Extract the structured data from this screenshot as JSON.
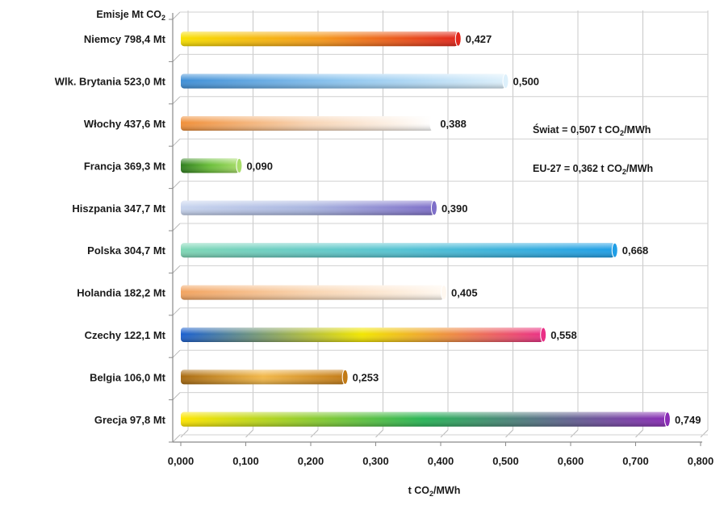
{
  "chart_data": {
    "type": "bar",
    "orientation": "horizontal",
    "title": "Emisje Mt CO",
    "title_subscript": "2",
    "categories": [
      "Niemcy 798,4 Mt",
      "Wlk. Brytania 523,0 Mt",
      "Włochy 437,6 Mt",
      "Francja 369,3 Mt",
      "Hiszpania 347,7 Mt",
      "Polska 304,7 Mt",
      "Holandia 182,2 Mt",
      "Czechy 122,1 Mt",
      "Belgia 106,0 Mt",
      "Grecja 97,8 Mt"
    ],
    "values": [
      0.427,
      0.5,
      0.388,
      0.09,
      0.39,
      0.668,
      0.405,
      0.558,
      0.253,
      0.749
    ],
    "value_labels": [
      "0,427",
      "0,500",
      "0,388",
      "0,090",
      "0,390",
      "0,668",
      "0,405",
      "0,558",
      "0,253",
      "0,749"
    ],
    "xlabel": "t CO",
    "xlabel_subscript": "2",
    "xlabel_suffix": "/MWh",
    "xlim": [
      0,
      0.8
    ],
    "xticks": [
      0,
      0.1,
      0.2,
      0.3,
      0.4,
      0.5,
      0.6,
      0.7,
      0.8
    ],
    "xtick_labels": [
      "0,000",
      "0,100",
      "0,200",
      "0,300",
      "0,400",
      "0,500",
      "0,600",
      "0,700",
      "0,800"
    ],
    "grid": true,
    "annotations": [
      {
        "prefix": "Świat = 0,507 t CO",
        "sub": "2",
        "suffix": "/MWh"
      },
      {
        "prefix": "EU-27 = 0,362 t CO",
        "sub": "2",
        "suffix": "/MWh"
      }
    ],
    "bar_colors": [
      [
        "#f8e000",
        "#f59a1c",
        "#e2261c"
      ],
      [
        "#3f8fd6",
        "#8fc6ef",
        "#ddf0fb"
      ],
      [
        "#f08f38",
        "#f7d3b2",
        "#ffffff"
      ],
      [
        "#2e7d1e",
        "#6bbf3a",
        "#a8dd6a"
      ],
      [
        "#c7d4ee",
        "#aab6e0",
        "#7e6fc9"
      ],
      [
        "#7fd7b5",
        "#55c3d2",
        "#1f9ee6"
      ],
      [
        "#f2a35f",
        "#f9d5b1",
        "#fff8f0"
      ],
      [
        "#1a5fd0",
        "#f2e600",
        "#ea2f86"
      ],
      [
        "#a86a10",
        "#f2b84a",
        "#c27a15"
      ],
      [
        "#ffe600",
        "#28b457",
        "#8a2bb6"
      ]
    ]
  }
}
